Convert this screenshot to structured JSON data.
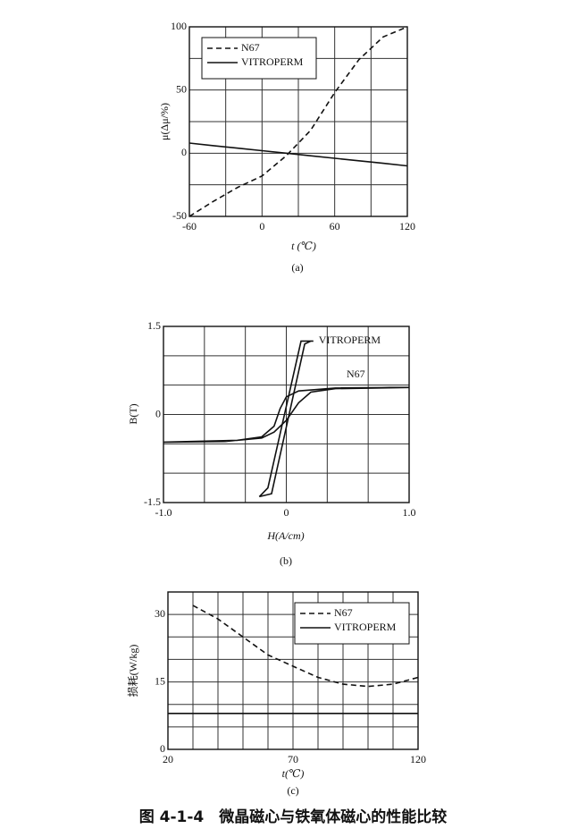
{
  "caption": "图 4-1-4　微晶磁心与铁氧体磁心的性能比较",
  "chart_data": [
    {
      "type": "line",
      "subtitle": "(a)",
      "xlabel": "t (℃)",
      "ylabel": "μ(Δμ/%)",
      "x": [
        -60,
        -40,
        -20,
        0,
        20,
        40,
        60,
        80,
        100,
        120
      ],
      "series": [
        {
          "name": "N67",
          "color": "#111111",
          "style": "dashed",
          "values": [
            -50,
            -38,
            -27,
            -18,
            -2,
            18,
            48,
            74,
            92,
            100
          ]
        },
        {
          "name": "VITROPERM",
          "color": "#111111",
          "style": "solid",
          "values": [
            8,
            6,
            4,
            2,
            0,
            -2,
            -4,
            -6,
            -8,
            -10
          ]
        }
      ],
      "xlim": [
        -60,
        120
      ],
      "ylim": [
        -50,
        100
      ],
      "xticks": [
        -60,
        0,
        60,
        120
      ],
      "yticks": [
        -50,
        0,
        50,
        100
      ],
      "grid": true,
      "legend": "upper left"
    },
    {
      "type": "line",
      "subtitle": "(b)",
      "xlabel": "H(A/cm)",
      "ylabel": "B(T)",
      "series": [
        {
          "name": "VITROPERM",
          "color": "#111111",
          "style": "solid",
          "x": [
            -0.22,
            -0.12,
            0.15,
            0.2,
            0.22,
            0.12,
            -0.15,
            -0.22
          ],
          "values": [
            -1.4,
            -1.35,
            1.2,
            1.25,
            1.25,
            1.25,
            -1.25,
            -1.4
          ]
        },
        {
          "name": "N67",
          "color": "#111111",
          "style": "solid",
          "x": [
            -1,
            -0.5,
            -0.2,
            -0.1,
            0,
            0.1,
            0.2,
            0.4,
            1,
            0.4,
            0.1,
            0,
            -0.05,
            -0.1,
            -0.2,
            -0.4,
            -1
          ],
          "values": [
            -0.47,
            -0.46,
            -0.4,
            -0.3,
            -0.1,
            0.2,
            0.38,
            0.44,
            0.46,
            0.45,
            0.4,
            0.3,
            0.1,
            -0.2,
            -0.38,
            -0.44,
            -0.47
          ]
        }
      ],
      "xlim": [
        -1,
        1
      ],
      "ylim": [
        -1.5,
        1.5
      ],
      "xticks": [
        {
          "value": -1,
          "label": "-1.0"
        },
        0,
        {
          "value": 1,
          "label": "1.0"
        }
      ],
      "yticks": [
        -1.5,
        0,
        1.5
      ],
      "grid": true
    },
    {
      "type": "line",
      "subtitle": "(c)",
      "xlabel": "t(℃)",
      "ylabel": "损耗(W/kg)",
      "series": [
        {
          "name": "N67",
          "color": "#111111",
          "style": "dashed",
          "x": [
            30,
            40,
            50,
            60,
            70,
            80,
            90,
            100,
            110,
            120
          ],
          "values": [
            32,
            29,
            25,
            21,
            18.5,
            16,
            14.5,
            14,
            14.5,
            16
          ]
        },
        {
          "name": "VITROPERM",
          "color": "#111111",
          "style": "solid",
          "x": [
            20,
            120
          ],
          "values": [
            8,
            8
          ]
        }
      ],
      "xlim": [
        20,
        120
      ],
      "ylim": [
        0,
        35
      ],
      "xticks": [
        20,
        70,
        120
      ],
      "yticks": [
        0,
        15,
        30
      ],
      "grid": true,
      "legend": "upper right"
    }
  ]
}
